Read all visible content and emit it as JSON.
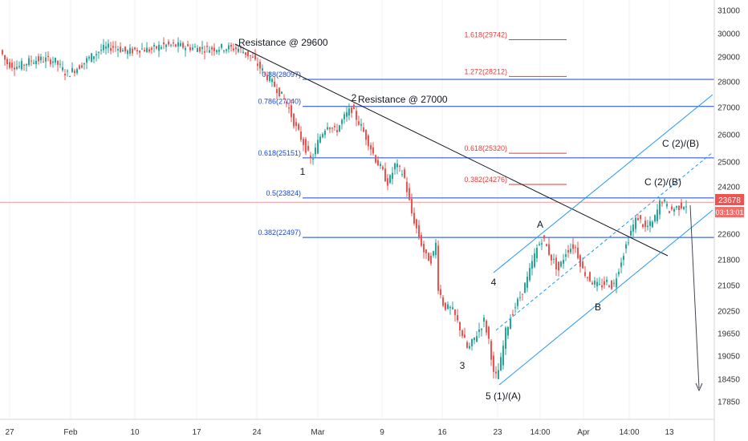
{
  "chart_data": {
    "type": "candlestick",
    "y_axis": {
      "ticks": [
        31000,
        30000,
        29000,
        28000,
        27000,
        26000,
        25000,
        24200,
        22600,
        21800,
        21050,
        20250,
        19650,
        19050,
        18450,
        17850
      ]
    },
    "x_axis": {
      "labels": [
        "27",
        "Feb",
        "10",
        "17",
        "24",
        "Mar",
        "9",
        "16",
        "23",
        "14:00",
        "Apr",
        "14:00",
        "13"
      ]
    },
    "price_now": {
      "value": "23678",
      "countdown": "03:13:01"
    },
    "fib_left": [
      {
        "label": "0.88(28097)",
        "value": 28097
      },
      {
        "label": "0.786(27040)",
        "value": 27040
      },
      {
        "label": "0.618(25151)",
        "value": 25151
      },
      {
        "label": "0.5(23824)",
        "value": 23824
      },
      {
        "label": "0.382(22497)",
        "value": 22497
      }
    ],
    "fib_right": [
      {
        "label": "1.618(29742)",
        "value": 29742
      },
      {
        "label": "1.272(28212)",
        "value": 28212
      },
      {
        "label": "0.618(25320)",
        "value": 25320
      },
      {
        "label": "0.382(24276)",
        "value": 24276
      }
    ],
    "annotations": {
      "resistance_1": "Resistance @ 29600",
      "resistance_2": "Resistance @ 27000",
      "wave_2": "2",
      "wave_1": "1",
      "wave_3": "3",
      "wave_4": "4",
      "wave_5": "5 (1)/(A)",
      "wave_a": "A",
      "wave_b": "B",
      "wave_c_near": "C (2)/(B)",
      "wave_c_far": "C (2)/(B)"
    },
    "colors": {
      "up": "#26a69a",
      "down": "#ef5350",
      "fib_line": "#1848cc",
      "fib_text_left": "#1848cc",
      "fib_text_right": "#e53935",
      "channel": "#2196f3",
      "trendline": "#131722",
      "price_badge": "#ef5350"
    }
  }
}
